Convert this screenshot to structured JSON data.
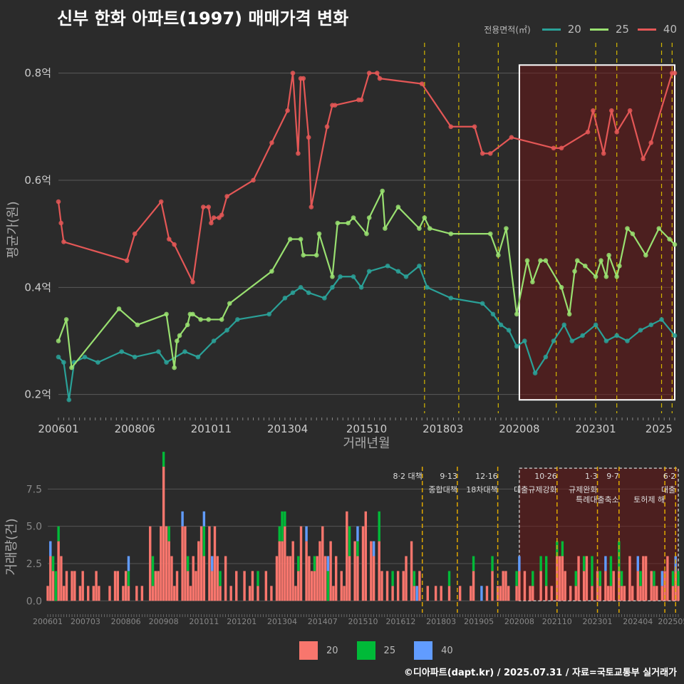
{
  "title": "신부 한화 아파트(1997) 매매가격 변화",
  "footer": "©디아파트(dapt.kr) / 2025.07.31 / 자료=국토교통부 실거래가",
  "legend": {
    "title": "전용면적(㎡)",
    "items": [
      {
        "label": "20",
        "color": "#2aa198"
      },
      {
        "label": "25",
        "color": "#99e070"
      },
      {
        "label": "40",
        "color": "#e45756"
      }
    ]
  },
  "bar_legend": [
    {
      "label": "20",
      "color": "#f8766d"
    },
    {
      "label": "25",
      "color": "#00ba38"
    },
    {
      "label": "40",
      "color": "#619cff"
    }
  ],
  "chart_data": [
    {
      "type": "line",
      "ylabel": "평균가(원)",
      "xlabel": "거래년월",
      "ylim": [
        0.165,
        0.85
      ],
      "yticks": [
        0.2,
        0.4,
        0.6,
        0.8
      ],
      "ytick_labels": [
        "0.2억",
        "0.4억",
        "0.6억",
        "0.8억"
      ],
      "xticks": [
        "200601",
        "200806",
        "201011",
        "201304",
        "201510",
        "201803",
        "202008",
        "202301",
        "2025"
      ],
      "x_range": [
        "2006-01",
        "2025-07"
      ],
      "vlines": [
        "2017-08",
        "2018-09",
        "2019-12",
        "2021-10",
        "2023-01",
        "2023-09",
        "2025-02",
        "2025-06"
      ],
      "highlight": {
        "from": "2020-08",
        "to": "2025-07",
        "ymin": 0.19,
        "ymax": 0.815
      },
      "series": [
        {
          "name": "40",
          "x": [
            "2006-01",
            "2006-02",
            "2006-03",
            "2008-03",
            "2008-06",
            "2009-04",
            "2009-07",
            "2009-09",
            "2010-04",
            "2010-08",
            "2010-10",
            "2010-11",
            "2010-12",
            "2011-02",
            "2011-03",
            "2011-05",
            "2012-03",
            "2012-10",
            "2013-04",
            "2013-06",
            "2013-08",
            "2013-09",
            "2013-10",
            "2013-12",
            "2014-01",
            "2014-07",
            "2014-09",
            "2014-10",
            "2015-07",
            "2015-08",
            "2015-11",
            "2016-02",
            "2016-03",
            "2017-07",
            "2018-06",
            "2019-03",
            "2019-06",
            "2019-09",
            "2020-05",
            "2021-09",
            "2021-12",
            "2022-10",
            "2022-12",
            "2023-04",
            "2023-07",
            "2023-09",
            "2024-02",
            "2024-07",
            "2024-10",
            "2025-06",
            "2025-07"
          ],
          "values": [
            0.56,
            0.52,
            0.485,
            0.45,
            0.5,
            0.56,
            0.49,
            0.48,
            0.41,
            0.55,
            0.55,
            0.52,
            0.53,
            0.53,
            0.535,
            0.57,
            0.6,
            0.67,
            0.73,
            0.8,
            0.65,
            0.79,
            0.79,
            0.68,
            0.55,
            0.7,
            0.74,
            0.74,
            0.75,
            0.75,
            0.8,
            0.8,
            0.79,
            0.78,
            0.7,
            0.7,
            0.65,
            0.65,
            0.68,
            0.66,
            0.66,
            0.69,
            0.73,
            0.65,
            0.73,
            0.69,
            0.73,
            0.64,
            0.67,
            0.8,
            0.8
          ]
        },
        {
          "name": "25",
          "x": [
            "2006-01",
            "2006-04",
            "2006-06",
            "2007-12",
            "2008-07",
            "2009-06",
            "2009-09",
            "2009-10",
            "2009-11",
            "2010-02",
            "2010-03",
            "2010-04",
            "2010-07",
            "2010-10",
            "2011-03",
            "2011-06",
            "2012-10",
            "2013-05",
            "2013-09",
            "2013-10",
            "2014-03",
            "2014-04",
            "2014-09",
            "2014-11",
            "2015-03",
            "2015-05",
            "2015-10",
            "2015-11",
            "2016-04",
            "2016-05",
            "2016-10",
            "2017-06",
            "2017-08",
            "2017-10",
            "2018-06",
            "2019-09",
            "2019-12",
            "2020-03",
            "2020-07",
            "2020-11",
            "2021-01",
            "2021-04",
            "2021-06",
            "2021-12",
            "2022-03",
            "2022-05",
            "2022-06",
            "2022-09",
            "2023-01",
            "2023-03",
            "2023-05",
            "2023-06",
            "2023-09",
            "2023-10",
            "2024-01",
            "2024-03",
            "2024-08",
            "2025-01",
            "2025-05",
            "2025-07"
          ],
          "values": [
            0.3,
            0.34,
            0.25,
            0.36,
            0.33,
            0.35,
            0.25,
            0.3,
            0.31,
            0.33,
            0.35,
            0.35,
            0.34,
            0.34,
            0.34,
            0.37,
            0.43,
            0.49,
            0.49,
            0.46,
            0.46,
            0.5,
            0.42,
            0.52,
            0.52,
            0.53,
            0.5,
            0.53,
            0.58,
            0.51,
            0.55,
            0.51,
            0.53,
            0.51,
            0.5,
            0.5,
            0.46,
            0.51,
            0.35,
            0.45,
            0.41,
            0.45,
            0.45,
            0.4,
            0.35,
            0.43,
            0.45,
            0.44,
            0.42,
            0.45,
            0.42,
            0.46,
            0.42,
            0.44,
            0.51,
            0.5,
            0.46,
            0.51,
            0.49,
            0.48
          ]
        },
        {
          "name": "20",
          "x": [
            "2006-01",
            "2006-03",
            "2006-05",
            "2006-07",
            "2006-11",
            "2007-04",
            "2008-01",
            "2008-06",
            "2009-03",
            "2009-06",
            "2010-01",
            "2010-06",
            "2010-12",
            "2011-05",
            "2011-09",
            "2012-09",
            "2013-03",
            "2013-06",
            "2013-09",
            "2013-12",
            "2014-06",
            "2014-09",
            "2014-12",
            "2015-05",
            "2015-08",
            "2015-11",
            "2016-06",
            "2016-10",
            "2017-01",
            "2017-06",
            "2017-09",
            "2018-06",
            "2019-06",
            "2019-10",
            "2020-01",
            "2020-04",
            "2020-07",
            "2020-10",
            "2021-02",
            "2021-06",
            "2021-09",
            "2022-01",
            "2022-04",
            "2022-08",
            "2023-01",
            "2023-05",
            "2023-09",
            "2024-01",
            "2024-06",
            "2024-10",
            "2025-02",
            "2025-07"
          ],
          "values": [
            0.27,
            0.26,
            0.19,
            0.26,
            0.27,
            0.26,
            0.28,
            0.27,
            0.28,
            0.26,
            0.28,
            0.27,
            0.3,
            0.32,
            0.34,
            0.35,
            0.38,
            0.39,
            0.4,
            0.39,
            0.38,
            0.4,
            0.42,
            0.42,
            0.4,
            0.43,
            0.44,
            0.43,
            0.42,
            0.44,
            0.4,
            0.38,
            0.37,
            0.35,
            0.33,
            0.32,
            0.29,
            0.3,
            0.24,
            0.27,
            0.3,
            0.33,
            0.3,
            0.31,
            0.33,
            0.3,
            0.31,
            0.3,
            0.32,
            0.33,
            0.34,
            0.31
          ]
        }
      ]
    },
    {
      "type": "bar",
      "ylabel": "거래량(건)",
      "ylim": [
        -0.8,
        9
      ],
      "yticks": [
        0,
        2.5,
        5,
        7.5
      ],
      "ytick_labels": [
        "0.0",
        "2.5",
        "5.0",
        "7.5"
      ],
      "xticks": [
        "200601",
        "200703",
        "200806",
        "200908",
        "201011",
        "201201",
        "201304",
        "201407",
        "201510",
        "201612",
        "201803",
        "201905",
        "202008",
        "202110",
        "202301",
        "202404",
        "202505"
      ],
      "x_range": [
        "2006-01",
        "2025-07"
      ],
      "highlight": {
        "from": "2020-08",
        "to": "2025-07"
      },
      "policy_lines": [
        {
          "date": "2017-08",
          "label1": "8·2 대책",
          "label2": ""
        },
        {
          "date": "2018-09",
          "label1": "9·13",
          "label2": "종합대책"
        },
        {
          "date": "2019-12",
          "label1": "12·16",
          "label2": "18차대책"
        },
        {
          "date": "2021-10",
          "label1": "10·26",
          "label2": "대출규제강화"
        },
        {
          "date": "2023-01",
          "label1": "1·3",
          "label2": "규제완화"
        },
        {
          "date": "2023-09",
          "label1": "9·7",
          "label2": "특례대출축소"
        },
        {
          "date": "2025-02",
          "label1": "",
          "label2": "토허제 해"
        },
        {
          "date": "2025-06",
          "label1": "6·2",
          "label2": "대출"
        }
      ],
      "series": [
        {
          "name": "20",
          "x": [
            "2006-01",
            "2006-02",
            "2006-03",
            "2006-05",
            "2006-06",
            "2006-07",
            "2006-08",
            "2006-10",
            "2006-11",
            "2007-01",
            "2007-02",
            "2007-04",
            "2007-06",
            "2007-07",
            "2007-08",
            "2007-12",
            "2008-02",
            "2008-03",
            "2008-05",
            "2008-06",
            "2008-07",
            "2008-10",
            "2008-12",
            "2009-03",
            "2009-04",
            "2009-05",
            "2009-06",
            "2009-07",
            "2009-08",
            "2009-09",
            "2009-10",
            "2009-11",
            "2009-12",
            "2010-01",
            "2010-03",
            "2010-04",
            "2010-05",
            "2010-06",
            "2010-07",
            "2010-08",
            "2010-09",
            "2010-10",
            "2010-11",
            "2011-01",
            "2011-02",
            "2011-03",
            "2011-04",
            "2011-05",
            "2011-07",
            "2011-09",
            "2011-11",
            "2012-02",
            "2012-04",
            "2012-05",
            "2012-07",
            "2012-10",
            "2012-12",
            "2013-02",
            "2013-03",
            "2013-04",
            "2013-05",
            "2013-06",
            "2013-07",
            "2013-08",
            "2013-09",
            "2013-10",
            "2013-11",
            "2014-01",
            "2014-02",
            "2014-03",
            "2014-04",
            "2014-05",
            "2014-06",
            "2014-07",
            "2014-08",
            "2014-10",
            "2014-11",
            "2014-12",
            "2015-02",
            "2015-03",
            "2015-04",
            "2015-05",
            "2015-07",
            "2015-08",
            "2015-10",
            "2015-11",
            "2016-01",
            "2016-02",
            "2016-04",
            "2016-05",
            "2016-07",
            "2016-09",
            "2016-11",
            "2017-01",
            "2017-02",
            "2017-04",
            "2017-05",
            "2017-07",
            "2017-10",
            "2018-01",
            "2018-03",
            "2018-06",
            "2018-10",
            "2019-02",
            "2019-03",
            "2019-08",
            "2019-10",
            "2019-12",
            "2020-01",
            "2020-02",
            "2020-03",
            "2020-04",
            "2020-07",
            "2020-08",
            "2020-10",
            "2020-12",
            "2021-01",
            "2021-04",
            "2021-06",
            "2021-08",
            "2021-10",
            "2021-11",
            "2021-12",
            "2022-01",
            "2022-03",
            "2022-05",
            "2022-06",
            "2022-08",
            "2022-09",
            "2022-11",
            "2023-01",
            "2023-02",
            "2023-04",
            "2023-05",
            "2023-06",
            "2023-07",
            "2023-09",
            "2023-10",
            "2023-11",
            "2024-01",
            "2024-02",
            "2024-04",
            "2024-05",
            "2024-06",
            "2024-07",
            "2024-09",
            "2024-10",
            "2024-11",
            "2025-01",
            "2025-02",
            "2025-03",
            "2025-05",
            "2025-06",
            "2025-07"
          ],
          "values": [
            1,
            3,
            2,
            4,
            3,
            1,
            2,
            2,
            2,
            1,
            2,
            1,
            1,
            2,
            1,
            1,
            2,
            2,
            1,
            2,
            1,
            1,
            1,
            5,
            1,
            2,
            2,
            5,
            9,
            5,
            4,
            3,
            1,
            2,
            5,
            5,
            2,
            1,
            3,
            2,
            4,
            5,
            3,
            5,
            2,
            5,
            3,
            1,
            3,
            1,
            2,
            2,
            1,
            2,
            1,
            2,
            1,
            3,
            4,
            4,
            5,
            3,
            3,
            4,
            1,
            2,
            5,
            4,
            3,
            2,
            2,
            3,
            4,
            5,
            3,
            4,
            1,
            3,
            2,
            1,
            6,
            3,
            4,
            3,
            5,
            6,
            4,
            3,
            4,
            2,
            2,
            1,
            2,
            2,
            3,
            4,
            1,
            2,
            1,
            1,
            1,
            1,
            1,
            1,
            2,
            1,
            2,
            1,
            1,
            2,
            2,
            1,
            1,
            2,
            2,
            1,
            1,
            2,
            1,
            1,
            3,
            3,
            3,
            2,
            1,
            1,
            3,
            2,
            3,
            1,
            2,
            1,
            2,
            1,
            1,
            2,
            2,
            1,
            1,
            3,
            1,
            2,
            1,
            3,
            3,
            2,
            1,
            1,
            1,
            2,
            3,
            1,
            2,
            1
          ]
        },
        {
          "name": "25",
          "x": [
            "2006-03",
            "2006-04",
            "2006-05",
            "2008-07",
            "2009-04",
            "2009-08",
            "2009-10",
            "2010-05",
            "2010-11",
            "2011-05",
            "2012-07",
            "2013-03",
            "2013-04",
            "2013-05",
            "2013-10",
            "2014-04",
            "2014-09",
            "2015-05",
            "2015-08",
            "2016-04",
            "2016-09",
            "2017-05",
            "2018-06",
            "2019-03",
            "2019-10",
            "2020-07",
            "2021-01",
            "2021-04",
            "2021-06",
            "2021-10",
            "2021-12",
            "2022-05",
            "2022-08",
            "2022-11",
            "2023-02",
            "2023-06",
            "2023-09",
            "2023-10",
            "2024-05",
            "2024-10",
            "2025-05",
            "2025-07"
          ],
          "values": [
            1,
            2,
            1,
            1,
            2,
            1,
            1,
            1,
            2,
            1,
            1,
            1,
            2,
            1,
            1,
            1,
            2,
            2,
            1,
            2,
            1,
            1,
            1,
            1,
            1,
            1,
            1,
            1,
            2,
            1,
            1,
            1,
            1,
            2,
            1,
            2,
            2,
            1,
            1,
            1,
            1,
            1
          ]
        },
        {
          "name": "40",
          "x": [
            "2006-02",
            "2008-07",
            "2010-03",
            "2010-11",
            "2011-02",
            "2014-01",
            "2014-09",
            "2015-08",
            "2016-02",
            "2017-06",
            "2019-06",
            "2020-08",
            "2023-04",
            "2024-04",
            "2025-01",
            "2025-06"
          ],
          "values": [
            1,
            1,
            1,
            1,
            1,
            1,
            1,
            1,
            1,
            1,
            1,
            1,
            1,
            1,
            1,
            1
          ]
        }
      ]
    }
  ]
}
